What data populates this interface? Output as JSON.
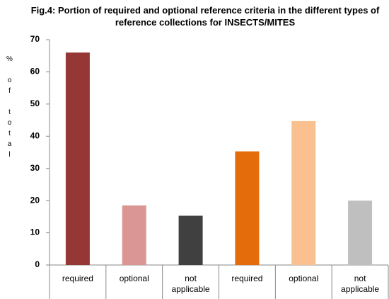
{
  "chart_data": {
    "type": "bar",
    "title": "Fig.4: Portion of required and optional reference criteria in the different types of reference collections for INSECTS/MITES",
    "y_label": "% of total",
    "categories": [
      "required",
      "optional",
      "not applicable",
      "required",
      "optional",
      "not applicable"
    ],
    "values": [
      66,
      18.5,
      15.3,
      35.3,
      44.7,
      20
    ],
    "colors": [
      "#953735",
      "#d99694",
      "#404040",
      "#e46c0a",
      "#fac08f",
      "#bfbfbf"
    ],
    "ylim": [
      0,
      70
    ],
    "yticks": [
      0,
      10,
      20,
      30,
      40,
      50,
      60,
      70
    ],
    "grid": false
  }
}
